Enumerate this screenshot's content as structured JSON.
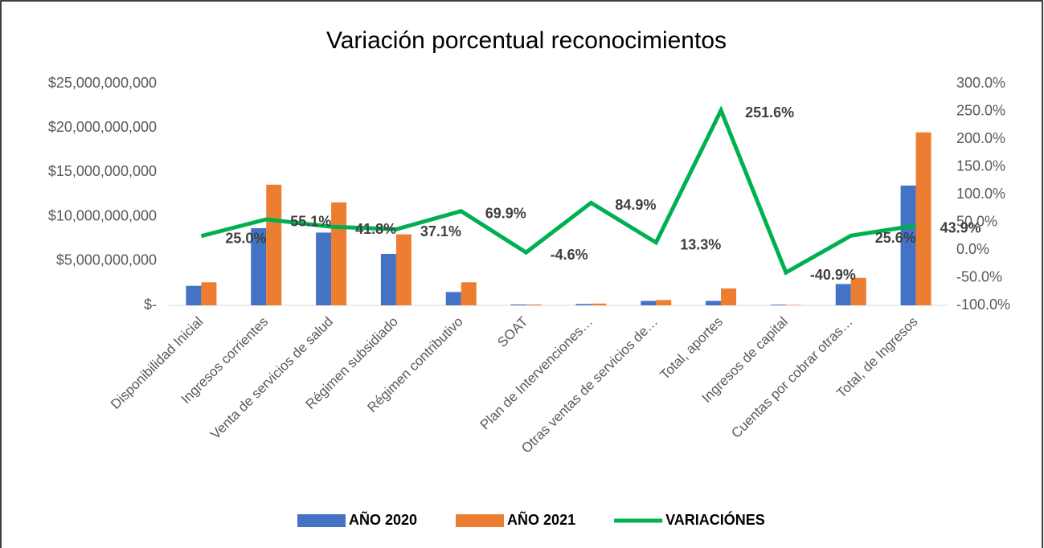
{
  "chart_data": {
    "type": "bar",
    "title": "Variación porcentual reconocimientos",
    "categories": [
      "Disponibilidad Inicial",
      "Ingresos corrientes",
      "Venta de servicios de salud",
      "Régimen subsidiado",
      "Régimen contributivo",
      "SOAT",
      "Plan de Intervenciones…",
      "Otras ventas de servicios de…",
      "Total, aportes",
      "Ingresos de capital",
      "Cuentas por cobrar otras…",
      "Total, de Ingresos"
    ],
    "series": [
      {
        "name": "AÑO 2020",
        "color": "#4472c4",
        "values": [
          2200000000,
          8700000000,
          8200000000,
          5800000000,
          1500000000,
          100000000,
          150000000,
          500000000,
          500000000,
          80000000,
          2400000000,
          13500000000
        ]
      },
      {
        "name": "AÑO 2021",
        "color": "#ed7d31",
        "values": [
          2600000000,
          13600000000,
          11600000000,
          8000000000,
          2600000000,
          100000000,
          200000000,
          600000000,
          1900000000,
          50000000,
          3100000000,
          19500000000
        ]
      },
      {
        "name": "VARIACIÓNES",
        "color": "#00b050",
        "type": "line",
        "axis": "y2",
        "values": [
          25.0,
          55.1,
          41.8,
          37.1,
          69.9,
          -4.6,
          84.9,
          13.3,
          251.6,
          -40.9,
          25.6,
          43.9
        ],
        "value_labels": [
          "25.0%",
          "55.1%",
          "41.8%",
          "37.1%",
          "69.9%",
          "-4.6%",
          "84.9%",
          "13.3%",
          "251.6%",
          "-40.9%",
          "25.6%",
          "43.9%"
        ]
      }
    ],
    "ylim": [
      0,
      25000000000
    ],
    "yticks": [
      {
        "value": 0,
        "label": "$-"
      },
      {
        "value": 5000000000,
        "label": "$5,000,000,000"
      },
      {
        "value": 10000000000,
        "label": "$10,000,000,000"
      },
      {
        "value": 15000000000,
        "label": "$15,000,000,000"
      },
      {
        "value": 20000000000,
        "label": "$20,000,000,000"
      },
      {
        "value": 25000000000,
        "label": "$25,000,000,000"
      }
    ],
    "y2lim": [
      -100,
      300
    ],
    "y2ticks": [
      {
        "value": -100,
        "label": "-100.0%"
      },
      {
        "value": -50,
        "label": "-50.0%"
      },
      {
        "value": 0,
        "label": "0.0%"
      },
      {
        "value": 50,
        "label": "50.0%"
      },
      {
        "value": 100,
        "label": "100.0%"
      },
      {
        "value": 150,
        "label": "150.0%"
      },
      {
        "value": 200,
        "label": "200.0%"
      },
      {
        "value": 250,
        "label": "250.0%"
      },
      {
        "value": 300,
        "label": "300.0%"
      }
    ],
    "legend": "bottom"
  }
}
